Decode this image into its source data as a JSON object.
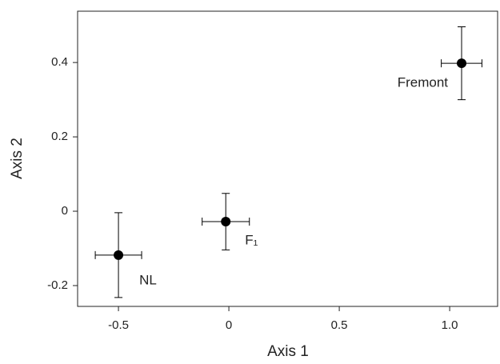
{
  "chart_data": {
    "type": "errorbar-scatter",
    "x_label": "Axis 1",
    "y_label": "Axis 2",
    "xlim": [
      -0.685,
      1.217
    ],
    "ylim": [
      -0.256,
      0.538
    ],
    "xticks": [
      -0.5,
      0,
      0.5,
      {
        "value": 1.0,
        "label": "1.0"
      }
    ],
    "yticks": [
      -0.2,
      0,
      0.2,
      0.4
    ],
    "color": "#000000",
    "points": [
      {
        "label": "NL",
        "x": -0.5,
        "y": -0.118,
        "x_err": 0.105,
        "y_err": 0.114
      },
      {
        "label": "F₁",
        "x": -0.014,
        "y": -0.028,
        "x_err": 0.107,
        "y_err": 0.076
      },
      {
        "label": "Fremont",
        "x": 1.054,
        "y": 0.398,
        "x_err": 0.092,
        "y_err": 0.098
      }
    ]
  }
}
